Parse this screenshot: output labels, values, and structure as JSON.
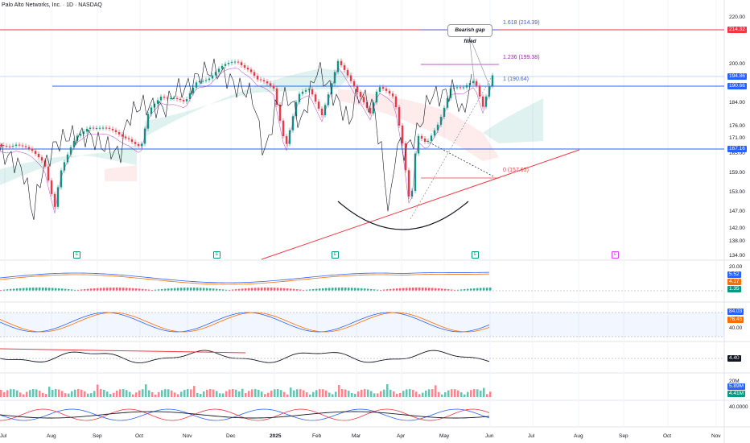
{
  "header": {
    "title": "Palo Alto Networks, Inc. · 1D · NASDAQ"
  },
  "price_axis": {
    "labels": [
      "220.00",
      "210.00",
      "200.00",
      "184.00",
      "176.00",
      "171.00",
      "165.00",
      "159.00",
      "153.00",
      "147.00",
      "142.00",
      "138.00",
      "134.00"
    ],
    "tags": [
      {
        "text": "214.32",
        "color": "#f23645"
      },
      {
        "text": "194.86",
        "color": "#2962ff"
      },
      {
        "text": "190.66",
        "color": "#2962ff"
      },
      {
        "text": "167.16",
        "color": "#2962ff"
      }
    ]
  },
  "fib_levels": [
    {
      "label": "1.618 (214.39)",
      "color": "#2962ff"
    },
    {
      "label": "1.236 (199.38)",
      "color": "#9c27b0"
    },
    {
      "label": "1 (190.64)",
      "color": "#2962ff"
    },
    {
      "label": "0 (157.65)",
      "color": "#f23645"
    }
  ],
  "annotation": {
    "text": "Bearish gap filled"
  },
  "earnings_markers": [
    {
      "text": "E"
    },
    {
      "text": "E"
    },
    {
      "text": "E"
    },
    {
      "text": "E"
    },
    {
      "text": "E"
    }
  ],
  "indicators": {
    "macd": {
      "axis_top": "20.00",
      "values": [
        {
          "text": "5.52",
          "color": "#2962ff"
        },
        {
          "text": "4.17",
          "color": "#ff6d00"
        },
        {
          "text": "1.35",
          "color": "#089981"
        }
      ]
    },
    "stoch": {
      "values": [
        {
          "text": "84.03",
          "color": "#2962ff"
        },
        {
          "text": "76.45",
          "color": "#ff6d00"
        }
      ],
      "axis_mid": "40.00"
    },
    "line": {
      "value": {
        "text": "4.40",
        "color": "#131722"
      }
    },
    "volume": {
      "axis_top": "20M",
      "values": [
        {
          "text": "5.89M",
          "color": "#2962ff"
        },
        {
          "text": "4.41M",
          "color": "#089981"
        }
      ]
    },
    "osc": {
      "axis": "40.0000"
    }
  },
  "time_axis": {
    "labels": [
      "Jul",
      "Aug",
      "Sep",
      "Oct",
      "Nov",
      "Dec",
      "2025",
      "Feb",
      "Mar",
      "Apr",
      "May",
      "Jun",
      "Jul",
      "Aug",
      "Sep",
      "Oct",
      "Nov"
    ]
  },
  "colors": {
    "up": "#089981",
    "down": "#f23645",
    "blue": "#2962ff",
    "orange": "#ff6d00"
  }
}
